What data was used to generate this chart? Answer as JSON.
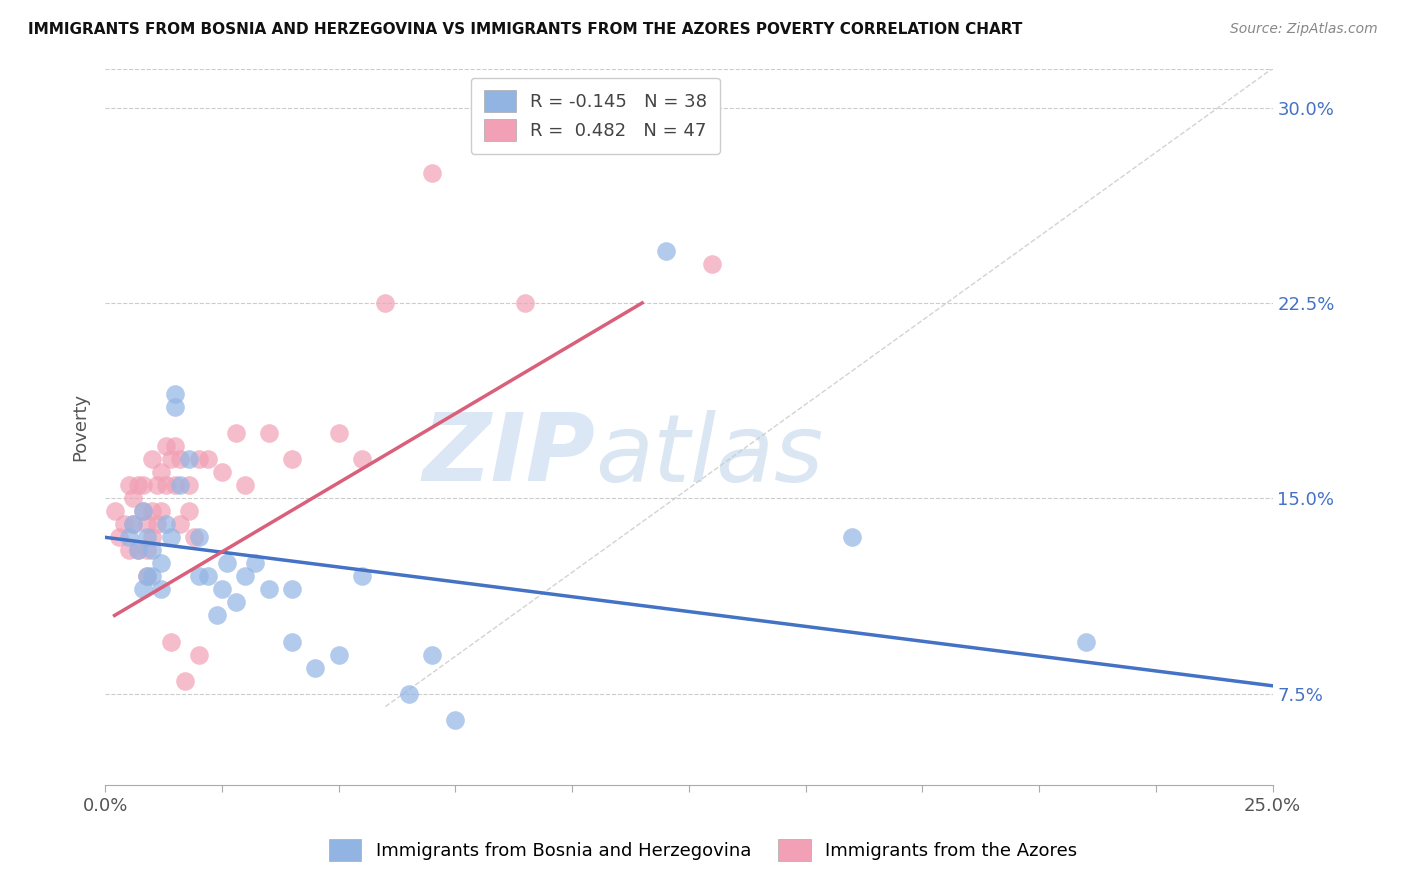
{
  "title": "IMMIGRANTS FROM BOSNIA AND HERZEGOVINA VS IMMIGRANTS FROM THE AZORES POVERTY CORRELATION CHART",
  "source": "Source: ZipAtlas.com",
  "ylabel": "Poverty",
  "yticks_labels": [
    "7.5%",
    "15.0%",
    "22.5%",
    "30.0%"
  ],
  "ytick_vals": [
    0.075,
    0.15,
    0.225,
    0.3
  ],
  "xlim": [
    0.0,
    0.25
  ],
  "ylim": [
    0.04,
    0.315
  ],
  "legend_blue_label": "Immigrants from Bosnia and Herzegovina",
  "legend_pink_label": "Immigrants from the Azores",
  "legend_r_blue": "R = -0.145",
  "legend_n_blue": "N = 38",
  "legend_r_pink": "R =  0.482",
  "legend_n_pink": "N = 47",
  "blue_color": "#92b4e3",
  "pink_color": "#f2a0b5",
  "blue_line_color": "#4472c4",
  "pink_line_color": "#d95f7a",
  "scatter_blue_x": [
    0.005,
    0.006,
    0.007,
    0.008,
    0.008,
    0.009,
    0.009,
    0.01,
    0.01,
    0.012,
    0.012,
    0.013,
    0.014,
    0.015,
    0.015,
    0.016,
    0.018,
    0.02,
    0.02,
    0.022,
    0.024,
    0.025,
    0.026,
    0.028,
    0.03,
    0.032,
    0.035,
    0.04,
    0.04,
    0.045,
    0.05,
    0.055,
    0.065,
    0.07,
    0.075,
    0.12,
    0.16,
    0.21
  ],
  "scatter_blue_y": [
    0.135,
    0.14,
    0.13,
    0.145,
    0.115,
    0.135,
    0.12,
    0.13,
    0.12,
    0.125,
    0.115,
    0.14,
    0.135,
    0.19,
    0.185,
    0.155,
    0.165,
    0.135,
    0.12,
    0.12,
    0.105,
    0.115,
    0.125,
    0.11,
    0.12,
    0.125,
    0.115,
    0.115,
    0.095,
    0.085,
    0.09,
    0.12,
    0.075,
    0.09,
    0.065,
    0.245,
    0.135,
    0.095
  ],
  "scatter_pink_x": [
    0.002,
    0.003,
    0.004,
    0.005,
    0.005,
    0.006,
    0.006,
    0.007,
    0.007,
    0.008,
    0.008,
    0.009,
    0.009,
    0.009,
    0.01,
    0.01,
    0.01,
    0.011,
    0.011,
    0.012,
    0.012,
    0.013,
    0.013,
    0.014,
    0.014,
    0.015,
    0.015,
    0.016,
    0.016,
    0.017,
    0.018,
    0.018,
    0.019,
    0.02,
    0.02,
    0.022,
    0.025,
    0.028,
    0.03,
    0.035,
    0.04,
    0.05,
    0.055,
    0.06,
    0.07,
    0.09,
    0.13
  ],
  "scatter_pink_y": [
    0.145,
    0.135,
    0.14,
    0.155,
    0.13,
    0.15,
    0.14,
    0.155,
    0.13,
    0.155,
    0.145,
    0.14,
    0.13,
    0.12,
    0.165,
    0.145,
    0.135,
    0.155,
    0.14,
    0.16,
    0.145,
    0.17,
    0.155,
    0.165,
    0.095,
    0.17,
    0.155,
    0.165,
    0.14,
    0.08,
    0.155,
    0.145,
    0.135,
    0.165,
    0.09,
    0.165,
    0.16,
    0.175,
    0.155,
    0.175,
    0.165,
    0.175,
    0.165,
    0.225,
    0.275,
    0.225,
    0.24
  ],
  "blue_line_x": [
    0.0,
    0.25
  ],
  "blue_line_y": [
    0.135,
    0.078
  ],
  "pink_line_x": [
    0.002,
    0.115
  ],
  "pink_line_y": [
    0.105,
    0.225
  ],
  "diag_line_x": [
    0.06,
    0.25
  ],
  "diag_line_y": [
    0.07,
    0.315
  ],
  "watermark_zip": "ZIP",
  "watermark_atlas": "atlas",
  "background_color": "#ffffff"
}
